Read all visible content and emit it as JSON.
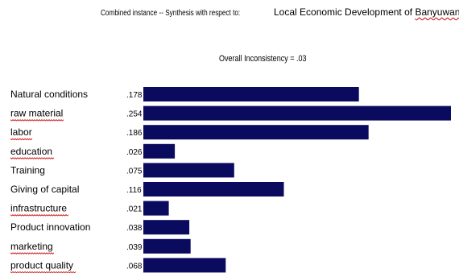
{
  "header": {
    "prefix": "Combined instance -- Synthesis with respect to:",
    "goal_part1": "Local Economic Development  of ",
    "goal_part2": "Banyuwangi"
  },
  "inconsistency": "Overall Inconsistency = .03",
  "colors": {
    "bar": "#0a0a5e"
  },
  "chart_data": {
    "type": "bar",
    "orientation": "horizontal",
    "title": "",
    "categories": [
      "Natural conditions",
      "raw material",
      "labor",
      "education",
      "Training",
      "Giving of capital",
      "infrastructure",
      "Product innovation",
      "marketing",
      "product quality"
    ],
    "value_labels": [
      ".178",
      ".254",
      ".186",
      ".026",
      ".075",
      ".116",
      ".021",
      ".038",
      ".039",
      ".068"
    ],
    "values": [
      0.178,
      0.254,
      0.186,
      0.026,
      0.075,
      0.116,
      0.021,
      0.038,
      0.039,
      0.068
    ],
    "misspelled_flags": [
      false,
      true,
      true,
      true,
      false,
      false,
      true,
      false,
      true,
      true
    ],
    "xlim": [
      0,
      0.254
    ],
    "grid": false,
    "legend": "none"
  }
}
